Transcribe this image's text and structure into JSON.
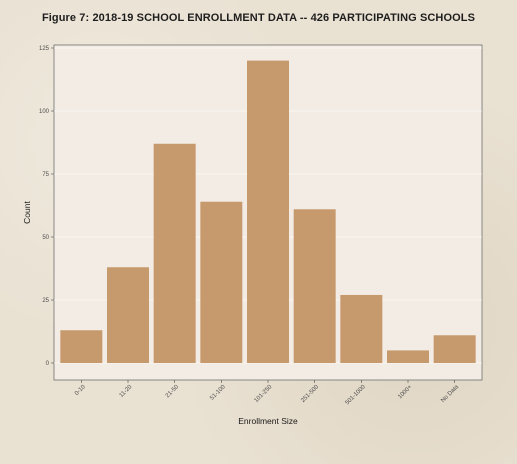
{
  "figure_title": "Figure 7: 2018-19 SCHOOL ENROLLMENT DATA -- 426 PARTICIPATING SCHOOLS",
  "colors": {
    "bar": "#c69a6c",
    "panel": "#f3ece4",
    "panel_border": "#6e6e6e",
    "grid": "#ffffff"
  },
  "chart_data": {
    "type": "bar",
    "title": "Figure 7: 2018-19 SCHOOL ENROLLMENT DATA -- 426 PARTICIPATING SCHOOLS",
    "xlabel": "Enrollment Size",
    "ylabel": "Count",
    "categories": [
      "0-10",
      "11-20",
      "21-50",
      "51-100",
      "101-250",
      "251-500",
      "501-1000",
      "1000+",
      "No Data"
    ],
    "values": [
      13,
      38,
      87,
      64,
      120,
      61,
      27,
      5,
      11
    ],
    "ylim": [
      0,
      125
    ],
    "yticks": [
      0,
      25,
      50,
      75,
      100,
      125
    ],
    "grid": true,
    "legend": "none"
  }
}
